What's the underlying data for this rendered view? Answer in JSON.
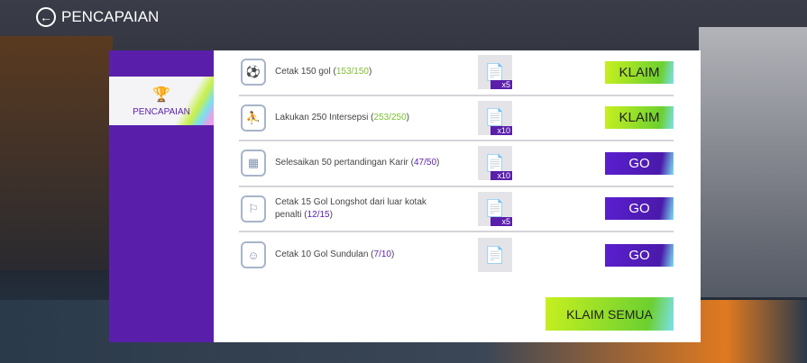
{
  "header": {
    "title": "PENCAPAIAN"
  },
  "sidebar": {
    "tab_label": "PENCAPAIAN"
  },
  "colors": {
    "accent": "#5a1faa",
    "claim": "#8ddc28",
    "done": "#7cc030"
  },
  "achievements": [
    {
      "icon": "goal-ball-icon",
      "text": "Cetak 150 gol",
      "progress": "153/150",
      "complete": true,
      "reward_qty": "x5",
      "action": "KLAIM"
    },
    {
      "icon": "interception-icon",
      "text": "Lakukan 250 Intersepsi",
      "progress": "253/250",
      "complete": true,
      "reward_qty": "x10",
      "action": "KLAIM"
    },
    {
      "icon": "calendar-check-icon",
      "text": "Selesaikan 50 pertandingan Karir",
      "progress": "47/50",
      "complete": false,
      "reward_qty": "x10",
      "action": "GO"
    },
    {
      "icon": "longshot-icon",
      "text": "Cetak 15 Gol Longshot dari luar kotak penalti",
      "progress": "12/15",
      "complete": false,
      "reward_qty": "x5",
      "action": "GO"
    },
    {
      "icon": "header-icon",
      "text": "Cetak 10 Gol Sundulan",
      "progress": "7/10",
      "complete": false,
      "reward_qty": "",
      "action": "GO"
    }
  ],
  "claim_all_label": "KLAIM SEMUA"
}
